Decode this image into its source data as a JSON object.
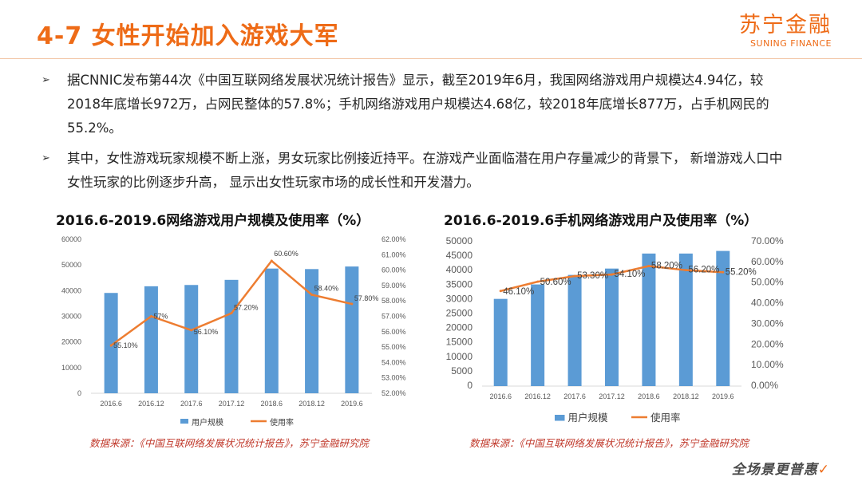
{
  "header": {
    "title": "4-7 女性开始加入游戏大军"
  },
  "logo": {
    "cn": "苏宁金融",
    "en": "SUNING FINANCE"
  },
  "bullets": [
    "据CNNIC发布第44次《中国互联网络发展状况统计报告》显示，截至2019年6月，我国网络游戏用户规模达4.94亿，较2018年底增长972万，占网民整体的57.8%；手机网络游戏用户规模达4.68亿，较2018年底增长877万，占手机网民的55.2%。",
    "其中，女性游戏玩家规模不断上涨，男女玩家比例接近持平。在游戏产业面临潜在用户存量减少的背景下，  新增游戏人口中女性玩家的比例逐步升高，  显示出女性玩家市场的成长性和开发潜力。"
  ],
  "sources": [
    "数据来源：《中国互联网络发展状况统计报告》，苏宁金融研究院",
    "数据来源：《中国互联网络发展状况统计报告》，苏宁金融研究院"
  ],
  "footer": {
    "text": "全场景更普惠",
    "mark": "✓"
  },
  "colors": {
    "accent": "#ee6b17",
    "bar": "#5b9bd5",
    "line": "#ed7d31"
  },
  "chart_data": [
    {
      "type": "bar",
      "title": "2016.6-2019.6网络游戏用户规模及使用率（%）",
      "categories": [
        "2016.6",
        "2016.12",
        "2017.6",
        "2017.12",
        "2018.6",
        "2018.12",
        "2019.6"
      ],
      "series": [
        {
          "name": "用户规模",
          "type": "bar",
          "axis": "left",
          "values": [
            39100,
            41700,
            42200,
            44200,
            48600,
            48400,
            49400
          ]
        },
        {
          "name": "使用率",
          "type": "line",
          "axis": "right",
          "values": [
            55.1,
            57.0,
            56.1,
            57.2,
            60.6,
            58.4,
            57.8
          ],
          "labels": [
            "55.10%",
            "57%",
            "56.10%",
            "57.20%",
            "60.60%",
            "58.40%",
            "57.80%"
          ]
        }
      ],
      "ylim_left": [
        0,
        60000
      ],
      "yticks_left": [
        "0",
        "10000",
        "20000",
        "30000",
        "40000",
        "50000",
        "60000"
      ],
      "ylim_right": [
        52,
        62
      ],
      "yticks_right": [
        "52.00%",
        "53.00%",
        "54.00%",
        "55.00%",
        "56.00%",
        "57.00%",
        "58.00%",
        "59.00%",
        "60.00%",
        "61.00%",
        "62.00%"
      ],
      "legend": "bottom",
      "grid": false
    },
    {
      "type": "bar",
      "title": "2016.6-2019.6手机网络游戏用户及使用率（%）",
      "categories": [
        "2016.6",
        "2016.12",
        "2017.6",
        "2017.12",
        "2018.6",
        "2018.12",
        "2019.6"
      ],
      "series": [
        {
          "name": "用户规模",
          "type": "bar",
          "axis": "left",
          "values": [
            30200,
            35200,
            38500,
            40700,
            45900,
            45900,
            46800
          ]
        },
        {
          "name": "使用率",
          "type": "line",
          "axis": "right",
          "values": [
            46.1,
            50.6,
            53.3,
            54.1,
            58.2,
            56.2,
            55.2
          ],
          "labels": [
            "46.10%",
            "50.60%",
            "53.30%",
            "54.10%",
            "58.20%",
            "56.20%",
            "55.20%"
          ]
        }
      ],
      "ylim_left": [
        0,
        50000
      ],
      "yticks_left": [
        "0",
        "5000",
        "10000",
        "15000",
        "20000",
        "25000",
        "30000",
        "35000",
        "40000",
        "45000",
        "50000"
      ],
      "ylim_right": [
        0,
        70
      ],
      "yticks_right": [
        "0.00%",
        "10.00%",
        "20.00%",
        "30.00%",
        "40.00%",
        "50.00%",
        "60.00%",
        "70.00%"
      ],
      "legend": "bottom",
      "grid": false
    }
  ]
}
